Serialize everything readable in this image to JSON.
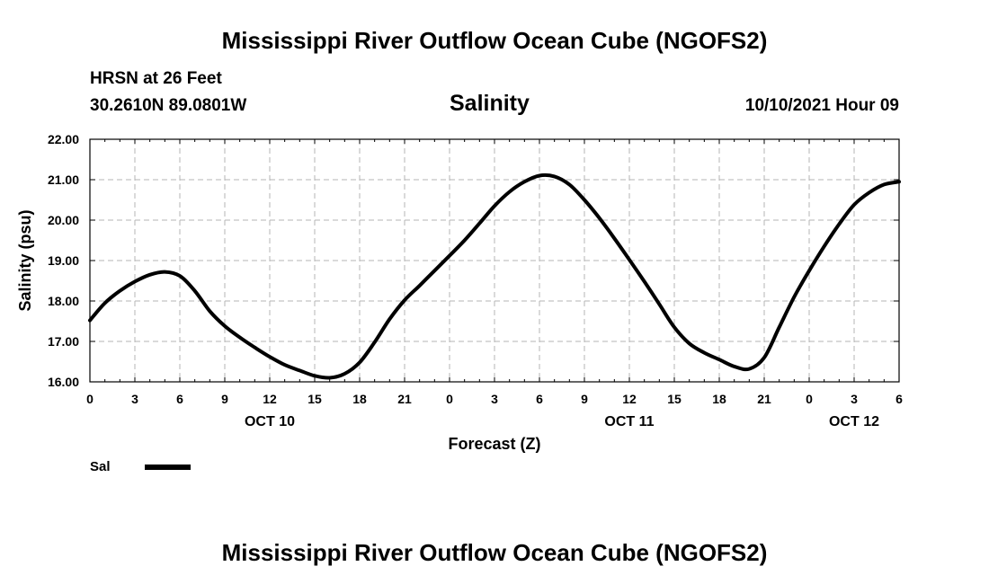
{
  "header": {
    "title": "Mississippi River Outflow Ocean Cube (NGOFS2)",
    "station": "HRSN at 26 Feet",
    "coords": "30.2610N  89.0801W",
    "variable": "Salinity",
    "datetime": "10/10/2021 Hour 09"
  },
  "footer": {
    "title": "Mississippi River Outflow Ocean Cube (NGOFS2)"
  },
  "legend": {
    "label": "Sal",
    "color": "#000000"
  },
  "chart_data": {
    "type": "line",
    "title": "Salinity",
    "xlabel": "Forecast (Z)",
    "ylabel": "Salinity (psu)",
    "xlim": [
      0,
      54
    ],
    "ylim": [
      16.0,
      22.0
    ],
    "grid": true,
    "x_tick_values": [
      0,
      3,
      6,
      9,
      12,
      15,
      18,
      21,
      24,
      27,
      30,
      33,
      36,
      39,
      42,
      45,
      48,
      51,
      54
    ],
    "x_tick_labels": [
      "0",
      "3",
      "6",
      "9",
      "12",
      "15",
      "18",
      "21",
      "0",
      "3",
      "6",
      "9",
      "12",
      "15",
      "18",
      "21",
      "0",
      "3",
      "6"
    ],
    "y_tick_values": [
      16.0,
      17.0,
      18.0,
      19.0,
      20.0,
      21.0,
      22.0
    ],
    "y_tick_labels": [
      "16.00",
      "17.00",
      "18.00",
      "19.00",
      "20.00",
      "21.00",
      "22.00"
    ],
    "date_labels": [
      {
        "x": 12,
        "label": "OCT 10"
      },
      {
        "x": 36,
        "label": "OCT 11"
      },
      {
        "x": 51,
        "label": "OCT 12"
      }
    ],
    "series": [
      {
        "name": "Sal",
        "x": [
          0,
          1,
          2,
          3,
          4,
          5,
          6,
          7,
          8,
          9,
          10,
          11,
          12,
          13,
          14,
          15,
          16,
          17,
          18,
          19,
          20,
          21,
          22,
          23,
          24,
          25,
          26,
          27,
          28,
          29,
          30,
          31,
          32,
          33,
          34,
          35,
          36,
          37,
          38,
          39,
          40,
          41,
          42,
          43,
          44,
          45,
          46,
          47,
          48,
          49,
          50,
          51,
          52,
          53,
          54
        ],
        "values": [
          17.52,
          17.95,
          18.25,
          18.48,
          18.65,
          18.72,
          18.62,
          18.25,
          17.75,
          17.38,
          17.1,
          16.85,
          16.62,
          16.42,
          16.28,
          16.15,
          16.1,
          16.2,
          16.48,
          16.98,
          17.55,
          18.02,
          18.38,
          18.75,
          19.12,
          19.5,
          19.92,
          20.35,
          20.7,
          20.95,
          21.1,
          21.08,
          20.88,
          20.5,
          20.05,
          19.55,
          19.02,
          18.48,
          17.92,
          17.35,
          16.95,
          16.72,
          16.55,
          16.38,
          16.32,
          16.6,
          17.35,
          18.1,
          18.75,
          19.35,
          19.9,
          20.38,
          20.68,
          20.88,
          20.95
        ]
      }
    ]
  }
}
